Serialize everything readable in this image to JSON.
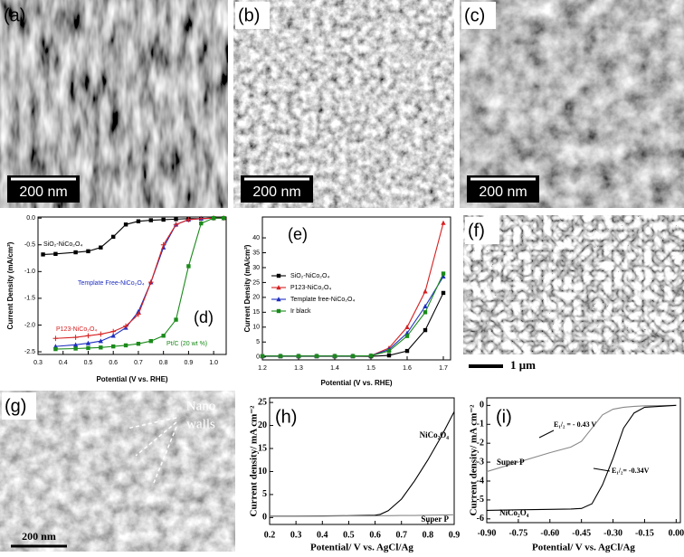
{
  "images": [
    {
      "label": "(a)",
      "scale_bar": "200 nm"
    },
    {
      "label": "(b)",
      "scale_bar": "200 nm"
    },
    {
      "label": "(c)",
      "scale_bar": "200 nm"
    },
    {
      "label": "(f)",
      "scale_bar": "1 μm"
    },
    {
      "label": "(g)",
      "scale_bar": "200 nm",
      "annotation": [
        "Nano",
        "walls"
      ]
    }
  ],
  "chart_data": [
    {
      "type": "line",
      "panel_label": "(d)",
      "x_label": "Potential (V vs. RHE)",
      "y_label": "Current Density (mA/cm²)",
      "x": [
        0.32,
        0.37,
        0.45,
        0.5,
        0.55,
        0.6,
        0.65,
        0.7,
        0.75,
        0.8,
        0.85,
        0.9,
        0.95,
        1.0,
        1.04
      ],
      "series": [
        {
          "name": "SiO₂-NiCo₂O₄",
          "color": "#000000",
          "marker": "square",
          "values": [
            -0.68,
            -0.67,
            -0.64,
            -0.62,
            -0.55,
            -0.35,
            -0.12,
            -0.06,
            -0.04,
            -0.03,
            -0.02,
            -0.01,
            -0.01,
            0,
            0
          ]
        },
        {
          "name": "Template Free-NiCo₂O₄",
          "color": "#1f2fbf",
          "marker": "triangle",
          "values": [
            null,
            -2.4,
            -2.37,
            -2.34,
            -2.3,
            -2.2,
            -2.05,
            -1.75,
            -1.2,
            -0.55,
            -0.12,
            -0.03,
            -0.01,
            0,
            0
          ]
        },
        {
          "name": "P123-NiCo₂O₄",
          "color": "#d62020",
          "marker": "plus",
          "values": [
            null,
            -2.25,
            -2.23,
            -2.2,
            -2.17,
            -2.12,
            -2.02,
            -1.8,
            -1.2,
            -0.5,
            -0.12,
            -0.03,
            -0.01,
            0,
            0
          ]
        },
        {
          "name": "Pt/C (20 wt %)",
          "color": "#1a8a1a",
          "marker": "square",
          "values": [
            null,
            -2.45,
            -2.44,
            -2.43,
            -2.42,
            -2.4,
            -2.38,
            -2.35,
            -2.3,
            -2.2,
            -1.9,
            -0.9,
            -0.1,
            0,
            0
          ]
        }
      ],
      "xlim": [
        0.3,
        1.05
      ],
      "xticks": [
        0.3,
        0.4,
        0.5,
        0.6,
        0.7,
        0.8,
        0.9,
        {
          "value": 1.0,
          "label": "1.0"
        }
      ],
      "ylim": [
        -2.55,
        0.02
      ],
      "yticks": [
        {
          "value": 0,
          "label": "0.0"
        },
        -0.5,
        {
          "value": -1,
          "label": "-1.0"
        },
        -1.5,
        {
          "value": -2,
          "label": "-2.0"
        },
        -2.5
      ]
    },
    {
      "type": "line",
      "panel_label": "(e)",
      "x_label": "Potential (V vs. RHE)",
      "y_label": "Current Density (mA/cm²)",
      "legend": "upper left",
      "x": [
        1.2,
        1.25,
        1.3,
        1.35,
        1.4,
        1.45,
        1.5,
        1.55,
        1.6,
        1.65,
        1.7
      ],
      "series": [
        {
          "name": "SiO₂-NiCo₂O₄",
          "color": "#000000",
          "marker": "square",
          "values": [
            0.2,
            0.2,
            0.2,
            0.2,
            0.2,
            0.2,
            0.2,
            0.5,
            2,
            9,
            21.5
          ]
        },
        {
          "name": "P123-NiCo₂O₄",
          "color": "#d62020",
          "marker": "triangle",
          "values": [
            0.3,
            0.3,
            0.3,
            0.3,
            0.3,
            0.3,
            0.4,
            3,
            10,
            22,
            45
          ]
        },
        {
          "name": "Template free-NiCo₂O₄",
          "color": "#1f2fbf",
          "marker": "triangle",
          "values": [
            0.3,
            0.3,
            0.3,
            0.3,
            0.3,
            0.3,
            0.4,
            2.5,
            8,
            17,
            27
          ]
        },
        {
          "name": "Ir black",
          "color": "#1a8a1a",
          "marker": "square",
          "values": [
            0.3,
            0.3,
            0.3,
            0.3,
            0.3,
            0.3,
            0.4,
            2,
            7,
            15,
            28
          ]
        }
      ],
      "xlim": [
        1.2,
        1.72
      ],
      "xticks": [
        1.2,
        1.3,
        1.4,
        1.5,
        1.6,
        1.7
      ],
      "ylim": [
        -1,
        47
      ],
      "yticks": [
        0,
        5,
        10,
        15,
        20,
        25,
        30,
        35,
        40
      ]
    },
    {
      "type": "line",
      "panel_label": "(h)",
      "x_label": "Potential/ V vs. AgCl/Ag",
      "y_label": "Current density/ mA cm⁻²",
      "x": [
        0.2,
        0.3,
        0.4,
        0.5,
        0.6,
        0.62,
        0.65,
        0.7,
        0.75,
        0.8,
        0.85,
        0.9
      ],
      "series": [
        {
          "name": "NiCo₂O₄",
          "color": "#000000",
          "marker": "none",
          "values": [
            0.3,
            0.3,
            0.35,
            0.4,
            0.5,
            0.7,
            1.5,
            4,
            8,
            12.5,
            17.5,
            23
          ]
        },
        {
          "name": "Super P",
          "color": "#888888",
          "marker": "none",
          "values": [
            0.3,
            0.3,
            0.3,
            0.35,
            0.35,
            0.4,
            0.4,
            0.45,
            0.45,
            0.5,
            0.55,
            0.6
          ]
        }
      ],
      "xlim": [
        0.2,
        0.9
      ],
      "xticks": [
        0.2,
        0.3,
        0.4,
        0.5,
        0.6,
        0.7,
        0.8,
        0.9
      ],
      "ylim": [
        -1.5,
        26
      ],
      "yticks": [
        0,
        5,
        10,
        15,
        20,
        25
      ]
    },
    {
      "type": "line",
      "panel_label": "(i)",
      "x_label": "Potential/ V vs. AgCl/Ag",
      "y_label": "Current density/ mA cm⁻²",
      "annotations": [
        "E₁/₂ = - 0.43 V",
        "E₁/₂= -0.34V"
      ],
      "x": [
        -0.9,
        -0.75,
        -0.6,
        -0.5,
        -0.45,
        -0.4,
        -0.35,
        -0.3,
        -0.25,
        -0.2,
        -0.15,
        0
      ],
      "series": [
        {
          "name": "Super P",
          "color": "#888888",
          "marker": "none",
          "values": [
            -3.5,
            -3.0,
            -2.5,
            -2.2,
            -1.9,
            -1.2,
            -0.5,
            -0.2,
            -0.1,
            -0.05,
            -0.02,
            0
          ]
        },
        {
          "name": "NiCo₂O₄",
          "color": "#000000",
          "marker": "none",
          "values": [
            -5.55,
            -5.52,
            -5.5,
            -5.48,
            -5.45,
            -5.2,
            -4.2,
            -2.8,
            -1.2,
            -0.4,
            -0.1,
            0
          ]
        }
      ],
      "xlim": [
        -0.9,
        0.02
      ],
      "xticks": [
        {
          "value": -0.9,
          "label": "-0.90"
        },
        {
          "value": -0.75,
          "label": "-0.75"
        },
        {
          "value": -0.6,
          "label": "-0.60"
        },
        {
          "value": -0.45,
          "label": "-0.45"
        },
        {
          "value": -0.3,
          "label": "-0.30"
        },
        {
          "value": -0.15,
          "label": "-0.15"
        },
        {
          "value": 0,
          "label": "0.00"
        }
      ],
      "ylim": [
        -6.2,
        0.4
      ],
      "yticks": [
        0,
        -1,
        -2,
        -3,
        -4,
        -5,
        -6
      ]
    }
  ]
}
